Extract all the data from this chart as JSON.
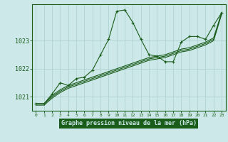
{
  "title": "Graphe pression niveau de la mer (hPa)",
  "background_color": "#cce8e8",
  "plot_bg_color": "#cce8e8",
  "grid_color": "#aacfcf",
  "line_color": "#1a5c1a",
  "xlabel_bg": "#1a5c1a",
  "xlabel_fg": "#cce8e8",
  "xlim": [
    -0.5,
    23.5
  ],
  "ylim": [
    1020.5,
    1024.3
  ],
  "yticks": [
    1021,
    1022,
    1023
  ],
  "xticks": [
    0,
    1,
    2,
    3,
    4,
    5,
    6,
    7,
    8,
    9,
    10,
    11,
    12,
    13,
    14,
    15,
    16,
    17,
    18,
    19,
    20,
    21,
    22,
    23
  ],
  "series1_x": [
    0,
    1,
    2,
    3,
    4,
    5,
    6,
    7,
    8,
    9,
    10,
    11,
    12,
    13,
    14,
    15,
    16,
    17,
    18,
    19,
    20,
    21,
    22,
    23
  ],
  "series1_y": [
    1020.75,
    1020.75,
    1021.1,
    1021.5,
    1021.4,
    1021.65,
    1021.7,
    1021.95,
    1022.5,
    1023.05,
    1024.05,
    1024.1,
    1023.65,
    1023.05,
    1022.5,
    1022.45,
    1022.25,
    1022.25,
    1022.95,
    1023.15,
    1023.15,
    1023.05,
    1023.55,
    1024.0
  ],
  "series2_x": [
    0,
    1,
    2,
    3,
    4,
    5,
    6,
    7,
    8,
    9,
    10,
    11,
    12,
    13,
    14,
    15,
    16,
    17,
    18,
    19,
    20,
    21,
    22,
    23
  ],
  "series2_y": [
    1020.75,
    1020.75,
    1021.05,
    1021.25,
    1021.4,
    1021.5,
    1021.6,
    1021.7,
    1021.8,
    1021.9,
    1022.0,
    1022.1,
    1022.2,
    1022.3,
    1022.4,
    1022.45,
    1022.5,
    1022.6,
    1022.7,
    1022.75,
    1022.85,
    1022.95,
    1023.1,
    1024.0
  ],
  "series3_x": [
    0,
    1,
    2,
    3,
    4,
    5,
    6,
    7,
    8,
    9,
    10,
    11,
    12,
    13,
    14,
    15,
    16,
    17,
    18,
    19,
    20,
    21,
    22,
    23
  ],
  "series3_y": [
    1020.75,
    1020.75,
    1021.0,
    1021.2,
    1021.35,
    1021.45,
    1021.55,
    1021.65,
    1021.75,
    1021.85,
    1021.95,
    1022.05,
    1022.15,
    1022.25,
    1022.35,
    1022.4,
    1022.45,
    1022.55,
    1022.65,
    1022.7,
    1022.8,
    1022.9,
    1023.05,
    1024.0
  ],
  "series4_x": [
    0,
    1,
    2,
    3,
    4,
    5,
    6,
    7,
    8,
    9,
    10,
    11,
    12,
    13,
    14,
    15,
    16,
    17,
    18,
    19,
    20,
    21,
    22,
    23
  ],
  "series4_y": [
    1020.7,
    1020.7,
    1020.95,
    1021.15,
    1021.3,
    1021.4,
    1021.5,
    1021.6,
    1021.7,
    1021.8,
    1021.9,
    1022.0,
    1022.1,
    1022.2,
    1022.3,
    1022.35,
    1022.4,
    1022.5,
    1022.6,
    1022.65,
    1022.75,
    1022.85,
    1023.0,
    1023.95
  ]
}
